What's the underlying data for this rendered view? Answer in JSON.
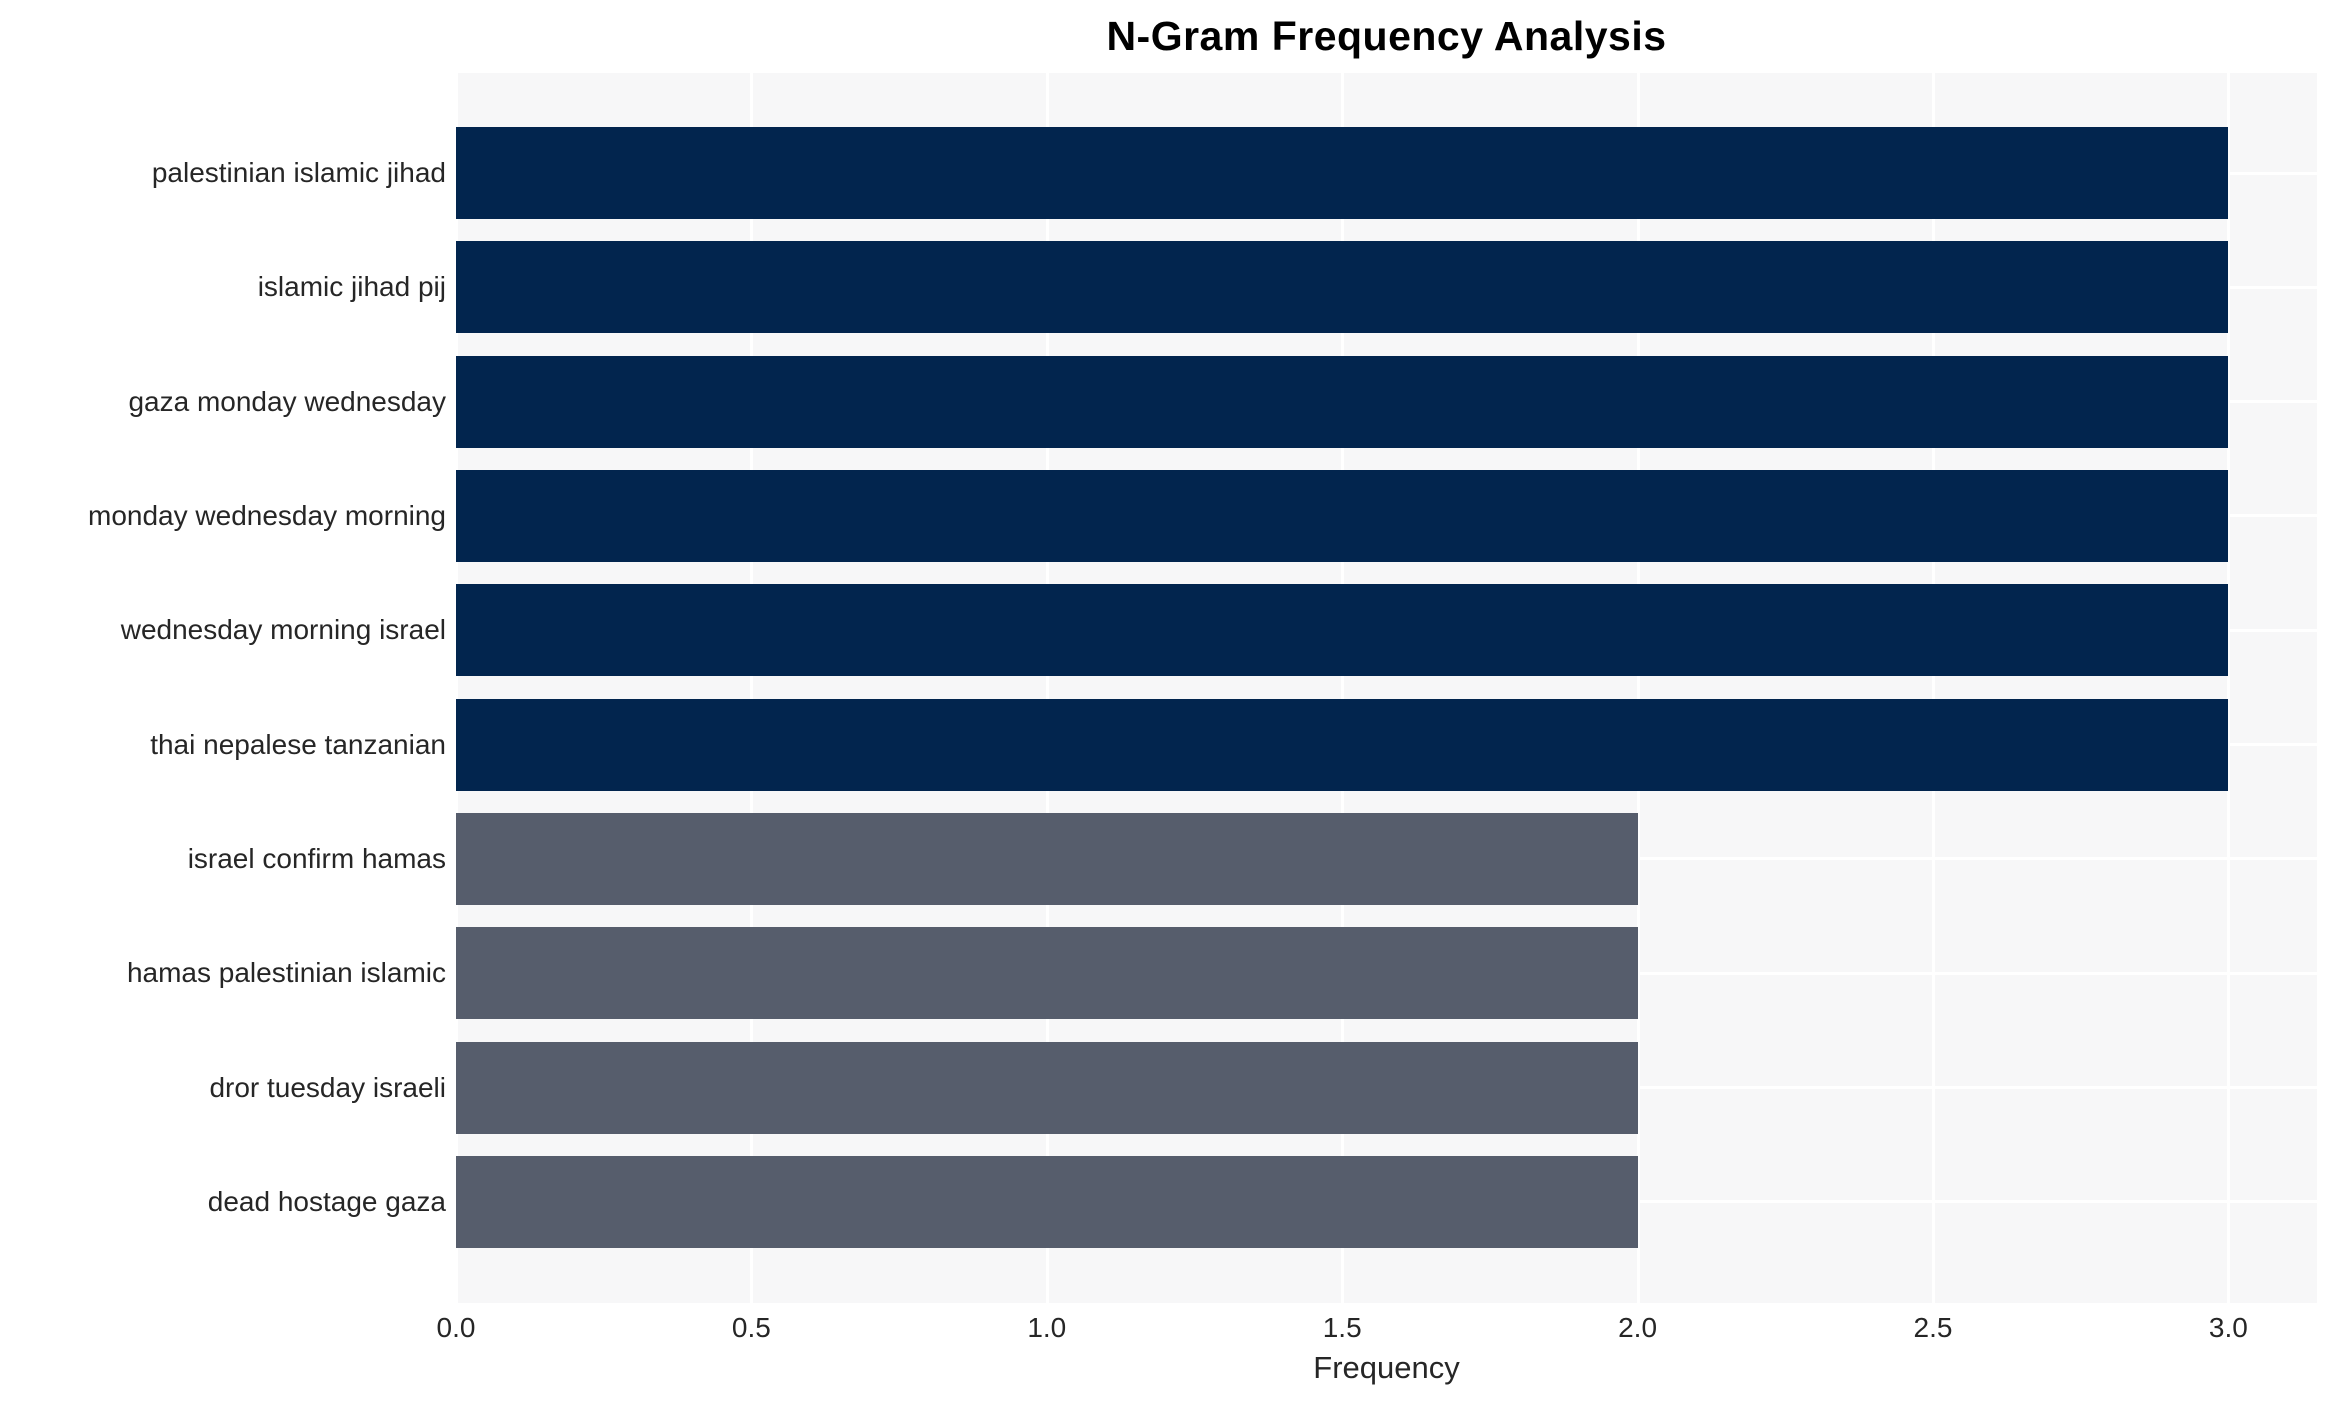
{
  "chart_data": {
    "type": "bar",
    "orientation": "horizontal",
    "title": "N-Gram Frequency Analysis",
    "xlabel": "Frequency",
    "ylabel": "",
    "categories": [
      "palestinian islamic jihad",
      "islamic jihad pij",
      "gaza monday wednesday",
      "monday wednesday morning",
      "wednesday morning israel",
      "thai nepalese tanzanian",
      "israel confirm hamas",
      "hamas palestinian islamic",
      "dror tuesday israeli",
      "dead hostage gaza"
    ],
    "values": [
      3,
      3,
      3,
      3,
      3,
      3,
      2,
      2,
      2,
      2
    ],
    "bar_colors": [
      "#02254e",
      "#02254e",
      "#02254e",
      "#02254e",
      "#02254e",
      "#02254e",
      "#565d6c",
      "#565d6c",
      "#565d6c",
      "#565d6c"
    ],
    "xticks": [
      "0.0",
      "0.5",
      "1.0",
      "1.5",
      "2.0",
      "2.5",
      "3.0"
    ],
    "xtick_values": [
      0,
      0.5,
      1,
      1.5,
      2,
      2.5,
      3
    ],
    "xlim": [
      0,
      3.15
    ],
    "grid": true,
    "legend": false,
    "colors": {
      "bar_high": "#02254e",
      "bar_low": "#565d6c",
      "plot_background": "#f7f7f8",
      "figure_background": "#ffffff",
      "gridline": "#ffffff",
      "tick_text": "#262626",
      "title_text": "#000000"
    }
  }
}
